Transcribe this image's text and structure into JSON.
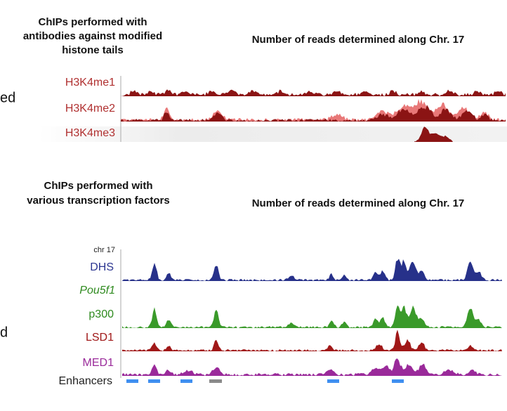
{
  "left_edge": {
    "upper": "ed",
    "lower": "d"
  },
  "histone_panel": {
    "title_lines": [
      "ChIPs performed with",
      "antibodies against modified",
      "histone tails"
    ],
    "subtitle": "Number of reads determined along Chr. 17",
    "tracks": [
      "H3K4me1",
      "H3K4me2",
      "H3K4me3"
    ]
  },
  "tf_panel": {
    "title_lines": [
      "ChIPs performed with",
      "various transcription factors"
    ],
    "subtitle": "Number of reads determined along Chr. 17",
    "chromosome": "chr 17",
    "tracks": [
      "DHS",
      "Pou5f1",
      "p300",
      "LSD1",
      "MED1"
    ],
    "enhancers_label": "Enhancers"
  }
}
